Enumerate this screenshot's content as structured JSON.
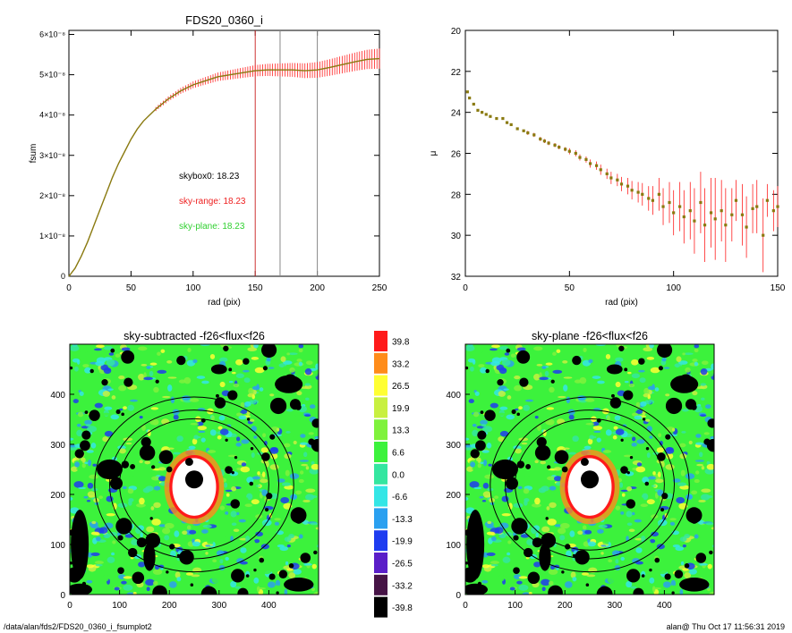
{
  "footer": {
    "path": "/data/alan/fds2/FDS20_0360_i_fsumplot2",
    "stamp": "alan@  Thu Oct 17 11:56:31 2019"
  },
  "colors": {
    "fsum_line": "#8a7a10",
    "fsum_err": "#ff2020",
    "sky_range": "#ee2020",
    "sky_plane": "#30d030",
    "marker_vline": "#cc3333",
    "gray_vline": "#888888"
  },
  "chart_data": [
    {
      "type": "line",
      "title": "FDS20_0360_i",
      "xlabel": "rad (pix)",
      "ylabel": "fsum",
      "xlim": [
        0,
        250
      ],
      "ylim": [
        0,
        6.1e-08
      ],
      "xticks": [
        0,
        50,
        100,
        150,
        200,
        250
      ],
      "yticks": [
        {
          "value": 0,
          "label": "0"
        },
        {
          "value": 1e-08,
          "label": "1×10⁻⁸"
        },
        {
          "value": 2e-08,
          "label": "2×10⁻⁸"
        },
        {
          "value": 3e-08,
          "label": "3×10⁻⁸"
        },
        {
          "value": 4e-08,
          "label": "4×10⁻⁸"
        },
        {
          "value": 5e-08,
          "label": "5×10⁻⁸"
        },
        {
          "value": 6e-08,
          "label": "6×10⁻⁸"
        }
      ],
      "x": [
        0,
        5,
        10,
        15,
        20,
        25,
        30,
        35,
        40,
        45,
        50,
        55,
        60,
        65,
        70,
        80,
        90,
        100,
        110,
        120,
        130,
        140,
        150,
        160,
        170,
        180,
        190,
        200,
        210,
        220,
        230,
        240,
        250
      ],
      "y": [
        0,
        2e-09,
        5e-09,
        8.5e-09,
        1.25e-08,
        1.65e-08,
        2.05e-08,
        2.45e-08,
        2.8e-08,
        3.1e-08,
        3.4e-08,
        3.65e-08,
        3.85e-08,
        4e-08,
        4.15e-08,
        4.4e-08,
        4.6e-08,
        4.75e-08,
        4.85e-08,
        4.95e-08,
        5e-08,
        5.05e-08,
        5.1e-08,
        5.12e-08,
        5.12e-08,
        5.12e-08,
        5.1e-08,
        5.12e-08,
        5.18e-08,
        5.25e-08,
        5.32e-08,
        5.38e-08,
        5.4e-08
      ],
      "vlines": [
        150,
        170,
        200
      ],
      "annotations": [
        "skybox0: 18.23",
        "sky-range: 18.23",
        "sky-plane: 18.23"
      ]
    },
    {
      "type": "scatter",
      "title": "",
      "xlabel": "rad (pix)",
      "ylabel": "μ",
      "xlim": [
        0,
        150
      ],
      "ylim": [
        32,
        20
      ],
      "xticks": [
        0,
        50,
        100,
        150
      ],
      "yticks": [
        20,
        22,
        24,
        26,
        28,
        30,
        32
      ],
      "x": [
        1,
        2,
        4,
        6,
        8,
        10,
        12,
        15,
        18,
        20,
        22,
        25,
        28,
        30,
        33,
        36,
        38,
        40,
        43,
        45,
        48,
        50,
        53,
        55,
        58,
        60,
        63,
        65,
        68,
        70,
        73,
        75,
        78,
        80,
        83,
        85,
        88,
        90,
        93,
        95,
        98,
        100,
        103,
        105,
        108,
        110,
        113,
        115,
        118,
        120,
        123,
        125,
        128,
        130,
        133,
        135,
        138,
        140,
        143,
        145,
        148,
        150
      ],
      "y": [
        23.0,
        23.3,
        23.6,
        23.9,
        24.0,
        24.1,
        24.2,
        24.3,
        24.3,
        24.5,
        24.6,
        24.8,
        24.9,
        25.0,
        25.1,
        25.3,
        25.4,
        25.5,
        25.6,
        25.7,
        25.8,
        25.9,
        26.0,
        26.2,
        26.3,
        26.5,
        26.6,
        26.8,
        27.0,
        27.2,
        27.3,
        27.5,
        27.6,
        27.8,
        27.9,
        28.0,
        28.2,
        28.3,
        28.0,
        28.6,
        28.4,
        28.9,
        28.6,
        29.1,
        28.8,
        29.3,
        28.4,
        29.5,
        28.9,
        29.2,
        28.8,
        29.5,
        29.0,
        28.3,
        29.0,
        29.6,
        28.7,
        28.6,
        30.0,
        28.3,
        28.8,
        28.6
      ],
      "errors": [
        0.05,
        0.05,
        0.05,
        0.05,
        0.05,
        0.05,
        0.05,
        0.05,
        0.05,
        0.05,
        0.05,
        0.05,
        0.05,
        0.1,
        0.1,
        0.1,
        0.1,
        0.1,
        0.1,
        0.1,
        0.1,
        0.15,
        0.15,
        0.15,
        0.15,
        0.2,
        0.2,
        0.25,
        0.25,
        0.3,
        0.3,
        0.35,
        0.4,
        0.45,
        0.5,
        0.55,
        0.6,
        0.7,
        0.8,
        0.9,
        1.0,
        1.1,
        1.2,
        1.3,
        1.4,
        1.6,
        1.5,
        1.8,
        1.7,
        2.0,
        1.5,
        1.8,
        1.3,
        1.0,
        1.5,
        1.5,
        1.2,
        1.3,
        1.8,
        0.8,
        1.0,
        1.0
      ]
    },
    {
      "type": "heatmap",
      "title": "sky-subtracted -f26<flux<f26",
      "xlim": [
        0,
        500
      ],
      "ylim": [
        0,
        500
      ],
      "xticks": [
        0,
        100,
        200,
        300,
        400
      ],
      "yticks": [
        0,
        100,
        200,
        300,
        400
      ],
      "ellipse_radii": [
        150,
        170,
        200
      ],
      "center": [
        250,
        220
      ]
    },
    {
      "type": "heatmap",
      "title": "sky-plane -f26<flux<f26",
      "xlim": [
        0,
        500
      ],
      "ylim": [
        0,
        500
      ],
      "xticks": [
        0,
        100,
        200,
        300,
        400
      ],
      "yticks": [
        0,
        100,
        200,
        300,
        400
      ],
      "ellipse_radii": [
        150,
        170,
        200
      ],
      "center": [
        250,
        220
      ]
    },
    {
      "type": "table",
      "title": "",
      "colorbar_labels": [
        "39.8",
        "33.2",
        "26.5",
        "19.9",
        "13.3",
        "6.6",
        "0.0",
        "-6.6",
        "-13.3",
        "-19.9",
        "-26.5",
        "-33.2",
        "-39.8"
      ],
      "colorbar_colors": [
        "#ff1a1a",
        "#ff8c1a",
        "#ffff33",
        "#c8f040",
        "#7ff23c",
        "#3cf23c",
        "#34e6a0",
        "#34e6e6",
        "#2aa0f0",
        "#1e3cf0",
        "#5a1ec8",
        "#461446",
        "#000000"
      ]
    }
  ]
}
